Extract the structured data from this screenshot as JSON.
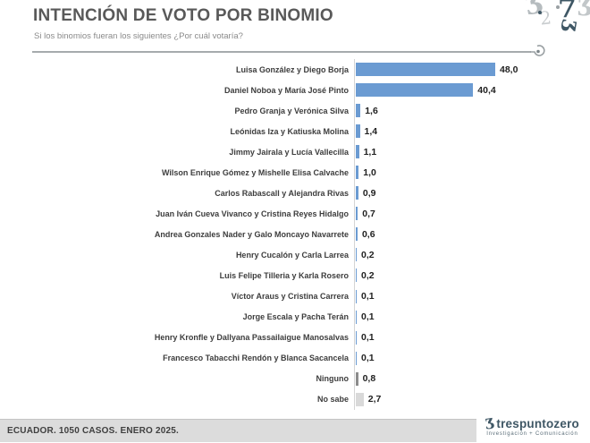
{
  "header": {
    "title": "INTENCIÓN DE VOTO POR BINOMIO",
    "subtitle": "Si los binomios fueran los siguientes ¿Por cuál votaría?"
  },
  "chart_data": {
    "type": "bar",
    "orientation": "horizontal",
    "title": "INTENCIÓN DE VOTO POR BINOMIO",
    "xlabel": "",
    "ylabel": "",
    "xlim": [
      0,
      50
    ],
    "grid": false,
    "legend": "none",
    "categories": [
      "Luisa González y Diego Borja",
      "Daniel Noboa y María José Pinto",
      "Pedro Granja y Verónica Silva",
      "Leónidas Iza y Katiuska Molina",
      "Jimmy Jairala y Lucía Vallecilla",
      "Wilson Enrique Gómez y Mishelle Elisa Calvache",
      "Carlos Rabascall y Alejandra Rivas",
      "Juan Iván Cueva Vivanco y Cristina Reyes Hidalgo",
      "Andrea Gonzales Nader y Galo Moncayo Navarrete",
      "Henry Cucalón y Carla Larrea",
      "Luis Felipe Tilleria y Karla Rosero",
      "Víctor Araus y Cristina Carrera",
      "Jorge Escala y Pacha Terán",
      "Henry Kronfle y Dallyana Passailaigue Manosalvas",
      "Francesco Tabacchi Rendón y Blanca Sacancela",
      "Ninguno",
      "No sabe"
    ],
    "values": [
      48.0,
      40.4,
      1.6,
      1.4,
      1.1,
      1.0,
      0.9,
      0.7,
      0.6,
      0.2,
      0.2,
      0.1,
      0.1,
      0.1,
      0.1,
      0.8,
      2.7
    ],
    "value_labels": [
      "48,0",
      "40,4",
      "1,6",
      "1,4",
      "1,1",
      "1,0",
      "0,9",
      "0,7",
      "0,6",
      "0,2",
      "0,2",
      "0,1",
      "0,1",
      "0,1",
      "0,1",
      "0,8",
      "2,7"
    ],
    "bar_colors": [
      "#6b9bd2",
      "#6b9bd2",
      "#6b9bd2",
      "#6b9bd2",
      "#6b9bd2",
      "#6b9bd2",
      "#6b9bd2",
      "#6b9bd2",
      "#6b9bd2",
      "#6b9bd2",
      "#6b9bd2",
      "#6b9bd2",
      "#6b9bd2",
      "#6b9bd2",
      "#6b9bd2",
      "#8c8c8c",
      "#d9d9d9"
    ]
  },
  "footer": {
    "text": "ECUADOR. 1050 CASOS. ENERO 2025."
  },
  "branding": {
    "logo_three": "Ʒ",
    "logo_text": "trespuntozero",
    "logo_tagline": "Investigación + Comunicación",
    "logo_color": "#3f5765"
  },
  "colors": {
    "bar_blue": "#6b9bd2",
    "bar_none_gray": "#8c8c8c",
    "bar_nosabe_gray": "#d9d9d9",
    "title_gray": "#595959",
    "axis_gray": "#d4d4d4",
    "footer_bg": "#dcdcdc"
  }
}
